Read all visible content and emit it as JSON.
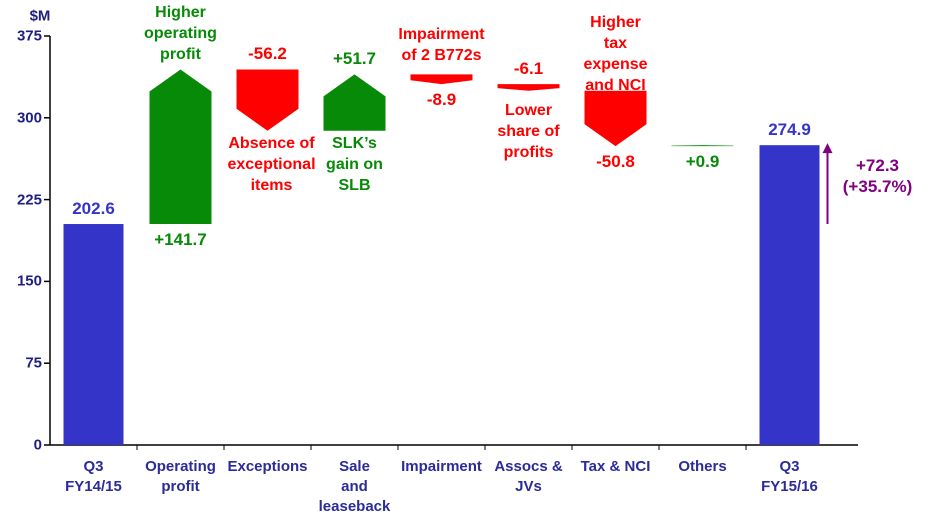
{
  "chart_data": {
    "type": "waterfall",
    "y_label": "$M",
    "categories": [
      "Q3\nFY14/15",
      "Operating\nprofit",
      "Exceptions",
      "Sale\nand\nleaseback",
      "Impairment",
      "Assocs &\nJVs",
      "Tax & NCI",
      "Others",
      "Q3\nFY15/16"
    ],
    "measures": [
      "absolute",
      "relative",
      "relative",
      "relative",
      "relative",
      "relative",
      "relative",
      "relative",
      "total"
    ],
    "values": [
      202.6,
      141.7,
      -56.2,
      51.7,
      -8.9,
      -6.1,
      -50.8,
      0.9,
      274.9
    ],
    "value_labels": [
      "202.6",
      "+141.7",
      "-56.2",
      "+51.7",
      "-8.9",
      "-6.1",
      "-50.8",
      "+0.9",
      "274.9"
    ],
    "annotations": [
      null,
      "Higher\noperating\nprofit",
      "Absence of\nexceptional\nitems",
      "SLK’s\ngain on\nSLB",
      "Impairment\nof 2 B772s",
      "Lower\nshare of\nprofits",
      "Higher\ntax\nexpense\nand NCI",
      null,
      null
    ],
    "change_label": "+72.3\n(+35.7%)",
    "colors": {
      "total": "#3434c8",
      "increase": "#078a07",
      "decrease": "#ff0000",
      "change": "#800080"
    },
    "ylim": [
      0,
      375
    ],
    "yticks": [
      0,
      75,
      150,
      225,
      300,
      375
    ],
    "grid": false
  }
}
